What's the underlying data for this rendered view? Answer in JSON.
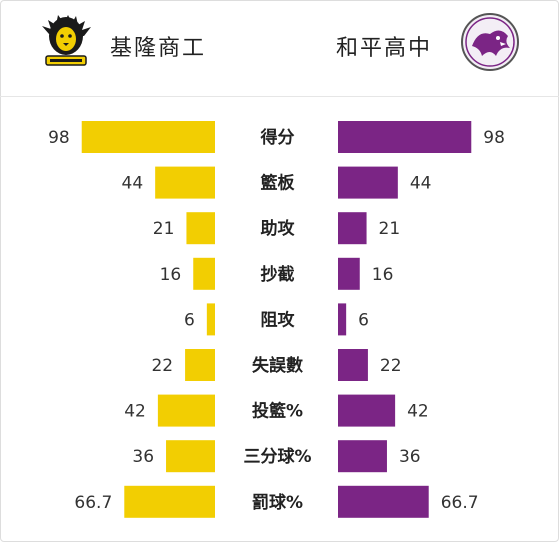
{
  "teams": {
    "left": {
      "name": "基隆商工",
      "logo_icon": "lion-icon",
      "color": "#F2CE02"
    },
    "right": {
      "name": "和平高中",
      "logo_icon": "dragon-icon",
      "color": "#7B2585"
    }
  },
  "chart_data": {
    "type": "bar",
    "categories": [
      "得分",
      "籃板",
      "助攻",
      "抄截",
      "阻攻",
      "失誤數",
      "投籃%",
      "三分球%",
      "罰球%"
    ],
    "series": [
      {
        "name": "基隆商工",
        "values": [
          98,
          44,
          21,
          16,
          6,
          22,
          42,
          36,
          66.7
        ]
      },
      {
        "name": "和平高中",
        "values": [
          98,
          44,
          21,
          16,
          6,
          22,
          42,
          36,
          66.7
        ]
      }
    ],
    "labels": [
      "98",
      "44",
      "21",
      "16",
      "6",
      "22",
      "42",
      "36",
      "66.7"
    ]
  }
}
